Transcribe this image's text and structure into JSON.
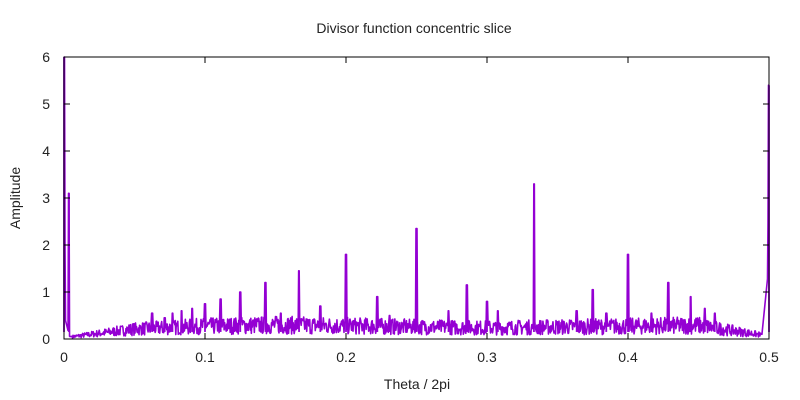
{
  "chart_data": {
    "type": "line",
    "title": "Divisor function concentric slice",
    "xlabel": "Theta / 2pi",
    "ylabel": "Amplitude",
    "xlim": [
      0,
      0.5
    ],
    "ylim": [
      0,
      6
    ],
    "xticks": [
      "0",
      "0.1",
      "0.2",
      "0.3",
      "0.4",
      "0.5"
    ],
    "xtick_values": [
      0,
      0.1,
      0.2,
      0.3,
      0.4,
      0.5
    ],
    "yticks": [
      "0",
      "1",
      "2",
      "3",
      "4",
      "5",
      "6"
    ],
    "ytick_values": [
      0,
      1,
      2,
      3,
      4,
      5,
      6
    ],
    "grid": false,
    "color": "#9400d3",
    "series": [
      {
        "baseline_description_points": [
          [
            0.0,
            6.0
          ],
          [
            0.001,
            0.4
          ],
          [
            0.004,
            0.05
          ],
          [
            0.02,
            0.12
          ],
          [
            0.05,
            0.25
          ],
          [
            0.1,
            0.32
          ],
          [
            0.15,
            0.35
          ],
          [
            0.2,
            0.33
          ],
          [
            0.25,
            0.3
          ],
          [
            0.3,
            0.28
          ],
          [
            0.35,
            0.3
          ],
          [
            0.4,
            0.32
          ],
          [
            0.45,
            0.34
          ],
          [
            0.495,
            0.1
          ],
          [
            0.499,
            1.3
          ],
          [
            0.5,
            5.4
          ]
        ],
        "peaks": [
          {
            "x": 0.0,
            "y": 6.0
          },
          {
            "x": 0.0035,
            "y": 3.1
          },
          {
            "x": 0.0625,
            "y": 0.55
          },
          {
            "x": 0.0714,
            "y": 0.45
          },
          {
            "x": 0.0769,
            "y": 0.55
          },
          {
            "x": 0.0833,
            "y": 0.6
          },
          {
            "x": 0.0909,
            "y": 0.65
          },
          {
            "x": 0.1,
            "y": 0.75
          },
          {
            "x": 0.1111,
            "y": 0.85
          },
          {
            "x": 0.125,
            "y": 1.0
          },
          {
            "x": 0.1429,
            "y": 1.2
          },
          {
            "x": 0.1538,
            "y": 0.55
          },
          {
            "x": 0.1667,
            "y": 1.45
          },
          {
            "x": 0.1818,
            "y": 0.7
          },
          {
            "x": 0.2,
            "y": 1.8
          },
          {
            "x": 0.2222,
            "y": 0.9
          },
          {
            "x": 0.2308,
            "y": 0.5
          },
          {
            "x": 0.25,
            "y": 2.35
          },
          {
            "x": 0.2727,
            "y": 0.6
          },
          {
            "x": 0.2857,
            "y": 1.15
          },
          {
            "x": 0.3,
            "y": 0.8
          },
          {
            "x": 0.3077,
            "y": 0.6
          },
          {
            "x": 0.3333,
            "y": 3.3
          },
          {
            "x": 0.3636,
            "y": 0.6
          },
          {
            "x": 0.375,
            "y": 1.05
          },
          {
            "x": 0.3846,
            "y": 0.55
          },
          {
            "x": 0.4,
            "y": 1.8
          },
          {
            "x": 0.4167,
            "y": 0.55
          },
          {
            "x": 0.4286,
            "y": 1.2
          },
          {
            "x": 0.4444,
            "y": 0.9
          },
          {
            "x": 0.4545,
            "y": 0.65
          },
          {
            "x": 0.4615,
            "y": 0.55
          },
          {
            "x": 0.5,
            "y": 5.4
          }
        ]
      }
    ]
  }
}
